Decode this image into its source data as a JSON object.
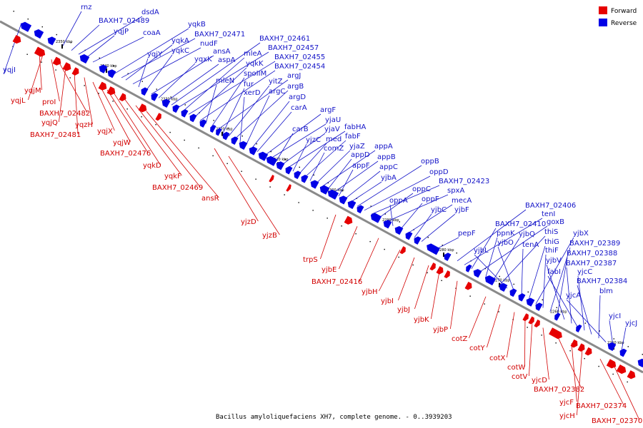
{
  "caption": "Bacillus amyloliquefaciens XH7, complete genome. - 0..3939203",
  "legend": [
    {
      "label": "Forward",
      "color": "#e60000"
    },
    {
      "label": "Reverse",
      "color": "#0000e6"
    }
  ],
  "colors": {
    "forward": "#e60000",
    "reverse": "#0000e6",
    "forward_label": "#d20000",
    "reverse_label": "#1414c8",
    "backbone": "#8a8a8a"
  },
  "ticks": [
    "2350 kbp",
    "2340 kbp",
    "2330 kbp",
    "2320 kbp",
    "2310 kbp",
    "2300 kbp",
    "2290 kbp",
    "2280 kbp",
    "2270 kbp",
    "2260 kbp",
    "2250 kbp"
  ],
  "reverse_genes": [
    "rnz",
    "BAXH7_02489",
    "dsdA",
    "yqjP",
    "coaA",
    "yqjI",
    "yqkB",
    "BAXH7_02471",
    "yqkA",
    "nudF",
    "yqjY",
    "yqkC",
    "ansA",
    "yqxK",
    "aspA",
    "BAXH7_02461",
    "BAXH7_02457",
    "mleA",
    "BAXH7_02455",
    "yqkK",
    "BAXH7_02454",
    "mleN",
    "spoIIM",
    "argJ",
    "fur",
    "yitZ",
    "argB",
    "xerD",
    "argC",
    "argD",
    "carA",
    "argF",
    "yjaU",
    "carB",
    "yjaV",
    "fabHA",
    "yjzC",
    "med",
    "fabF",
    "comZ",
    "yjaZ",
    "appA",
    "appD",
    "appB",
    "appF",
    "appC",
    "yjbA",
    "oppB",
    "oppD",
    "BAXH7_02423",
    "oppC",
    "spxA",
    "oppA",
    "oppF",
    "mecA",
    "yjbC",
    "yjbF",
    "pepF",
    "BAXH7_02406",
    "tenI",
    "BAXH7_02410",
    "goxB",
    "ppnK",
    "yjbQ",
    "thiS",
    "yjbL",
    "yjbO",
    "tenA",
    "thiG",
    "yjbX",
    "thiF",
    "BAXH7_02389",
    "BAXH7_02388",
    "yjbV",
    "BAXH7_02387",
    "fabI",
    "yjcC",
    "BAXH7_02384",
    "blm",
    "yjcA",
    "yjcI",
    "yjcJ"
  ],
  "forward_genes": [
    "yqjM",
    "yqjL",
    "proI",
    "BAXH7_02482",
    "yqjQ",
    "BAXH7_02481",
    "yqzH",
    "yqjX",
    "yqjW",
    "BAXH7_02476",
    "yqkD",
    "yqkF",
    "BAXH7_02469",
    "ansR",
    "yjzD",
    "yjzB",
    "trpS",
    "yjbE",
    "BAXH7_02416",
    "yjbH",
    "yjbI",
    "yjbJ",
    "yjbK",
    "yjbP",
    "cotZ",
    "cotY",
    "cotX",
    "cotW",
    "cotV",
    "yjcD",
    "BAXH7_02382",
    "yjcF",
    "yjcH",
    "BAXH7_02374",
    "BAXH7_02370"
  ]
}
